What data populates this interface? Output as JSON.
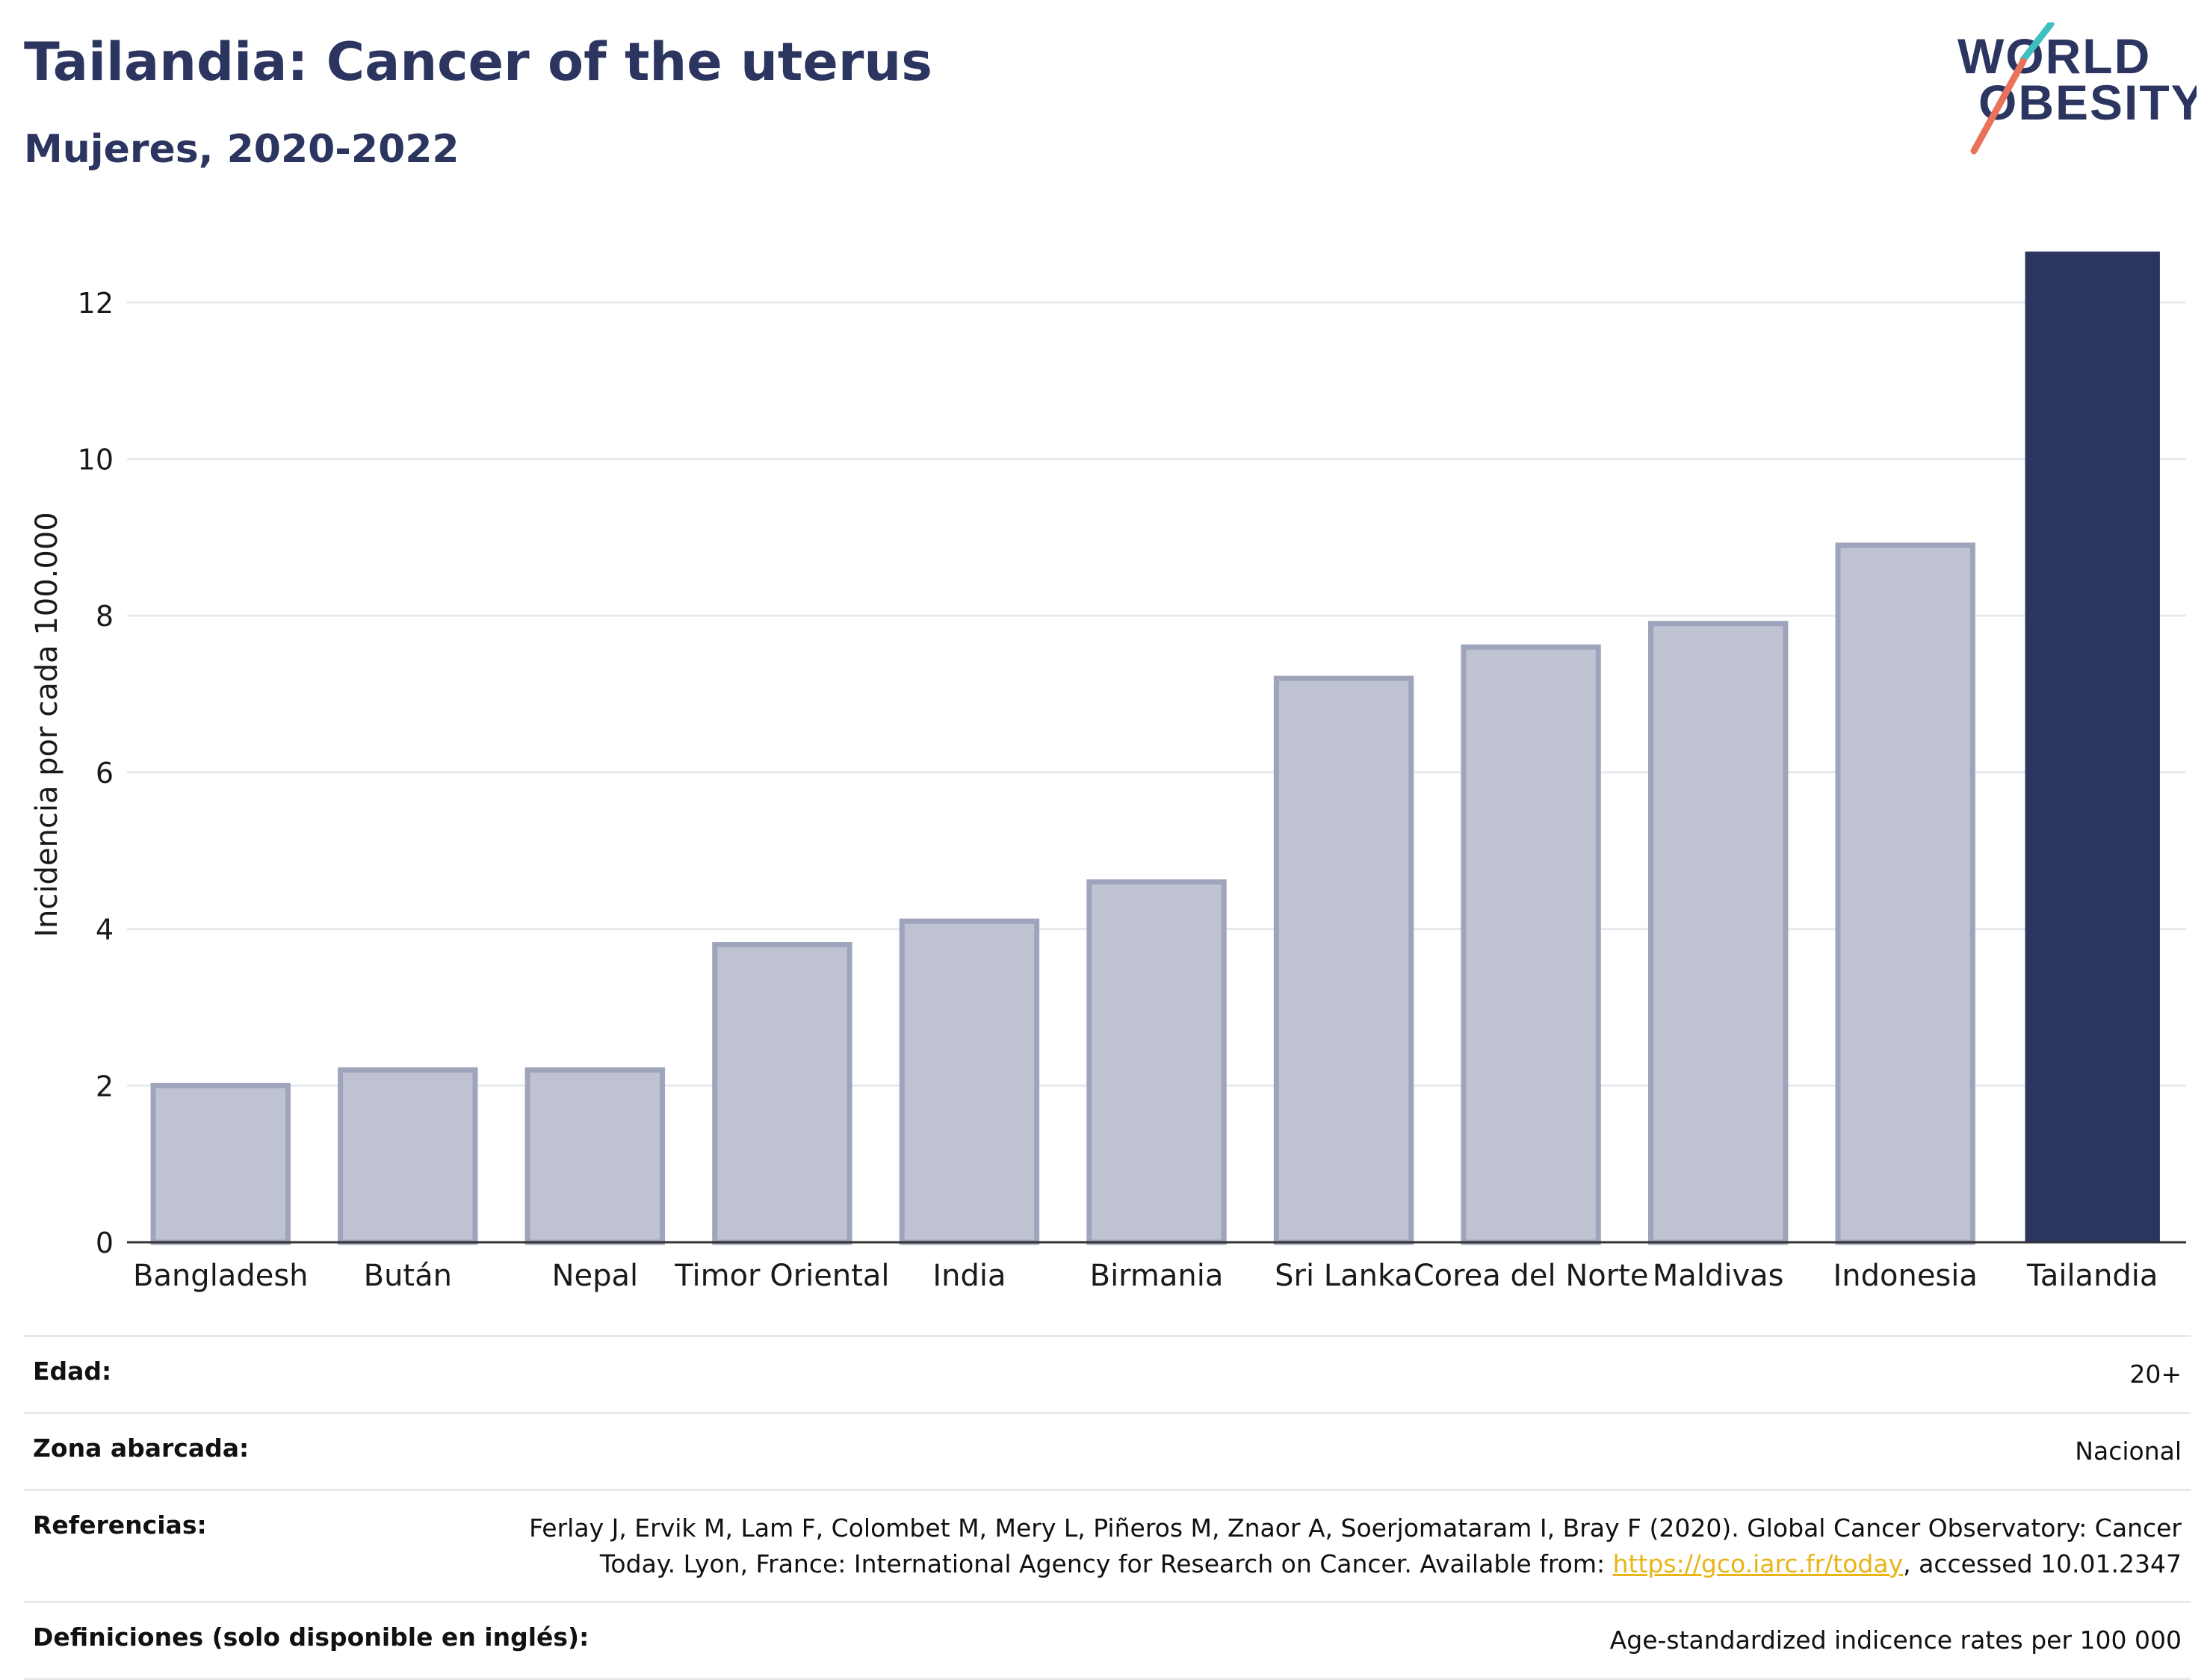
{
  "header": {
    "title": "Tailandia: Cancer of the uterus",
    "subtitle": "Mujeres, 2020-2022"
  },
  "logo": {
    "line1": "WORLD",
    "line2": "OBESITY",
    "icon": "world-obesity-logo"
  },
  "colors": {
    "highlight": "#2b3560",
    "muted_fill": "#bfc3d1",
    "muted_stroke": "#9ea4bb",
    "grid": "#e6eaef",
    "link": "#e8b416"
  },
  "chart_data": {
    "type": "bar",
    "categories": [
      "Bangladesh",
      "Bután",
      "Nepal",
      "Timor Oriental",
      "India",
      "Birmania",
      "Sri Lanka",
      "Corea del Norte",
      "Maldivas",
      "Indonesia",
      "Tailandia"
    ],
    "values": [
      2.0,
      2.2,
      2.2,
      3.8,
      4.1,
      4.6,
      7.2,
      7.6,
      7.9,
      8.9,
      12.65
    ],
    "highlight": "Tailandia",
    "ylabel": "Incidencia por cada 100.000",
    "xlabel": "",
    "ylim": [
      0,
      13
    ],
    "yticks": [
      0,
      2,
      4,
      6,
      8,
      10,
      12
    ],
    "grid": true
  },
  "meta": [
    {
      "label": "Edad:",
      "value": "20+"
    },
    {
      "label": "Zona abarcada:",
      "value": "Nacional"
    },
    {
      "label": "Referencias:",
      "value_line1": "Ferlay J, Ervik M, Lam F, Colombet M, Mery L, Piñeros M, Znaor A, Soerjomataram I, Bray F (2020). Global Cancer Observatory: Cancer",
      "value_pre": "Today. Lyon, France: International Agency for Research on Cancer. Available from: ",
      "link": "https://gco.iarc.fr/today",
      "value_post": ", accessed 10.01.2347"
    },
    {
      "label": "Definiciones (solo disponible en inglés):",
      "value": "Age-standardized indicence rates per 100 000"
    }
  ]
}
